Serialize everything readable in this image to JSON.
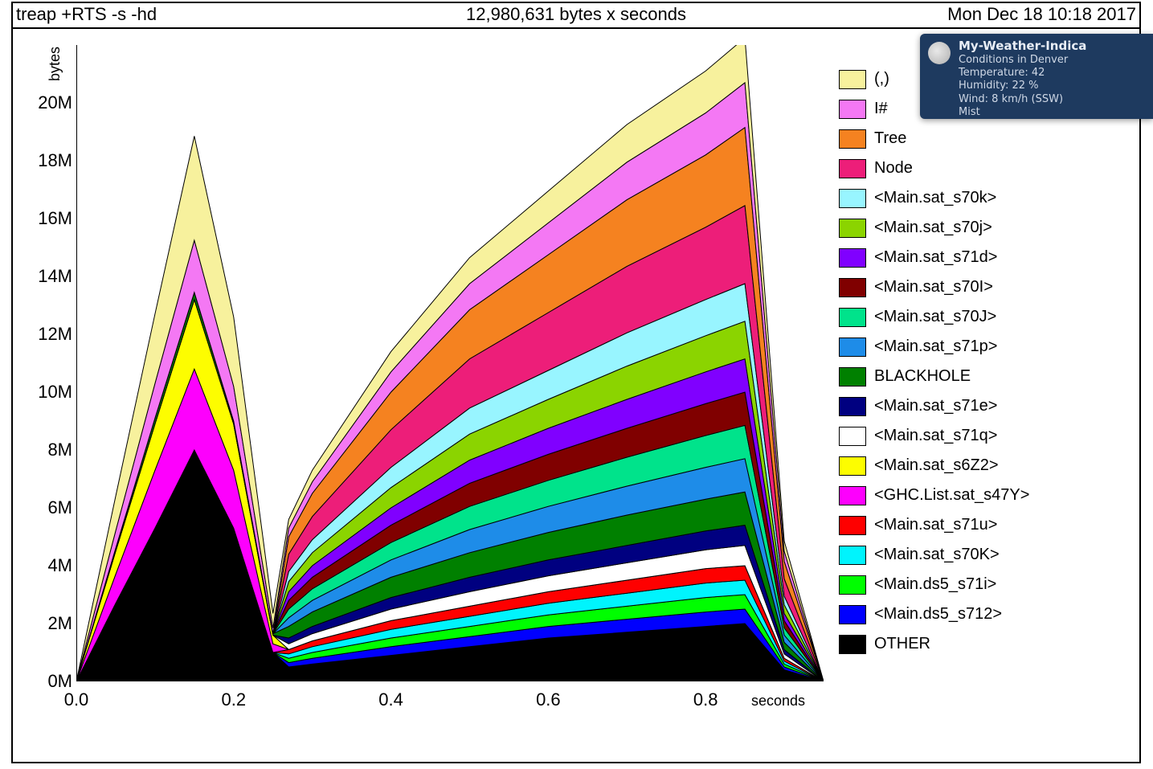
{
  "header": {
    "left": "treap +RTS -s -hd",
    "center": "12,980,631 bytes x seconds",
    "right": "Mon Dec 18 10:18 2017"
  },
  "chart": {
    "type": "area-stacked",
    "xlabel": "seconds",
    "ylabel": "bytes",
    "background_color": "#ffffff",
    "border_color": "#000000",
    "xlim": [
      0.0,
      0.95
    ],
    "ylim": [
      0,
      22
    ],
    "label_fontsize": 18,
    "tick_fontsize": 22,
    "x_ticks": [
      {
        "value": 0.0,
        "label": "0.0"
      },
      {
        "value": 0.2,
        "label": "0.2"
      },
      {
        "value": 0.4,
        "label": "0.4"
      },
      {
        "value": 0.6,
        "label": "0.6"
      },
      {
        "value": 0.8,
        "label": "0.8"
      }
    ],
    "y_ticks": [
      {
        "value": 0,
        "label": "0M"
      },
      {
        "value": 2,
        "label": "2M"
      },
      {
        "value": 4,
        "label": "4M"
      },
      {
        "value": 6,
        "label": "6M"
      },
      {
        "value": 8,
        "label": "8M"
      },
      {
        "value": 10,
        "label": "10M"
      },
      {
        "value": 12,
        "label": "12M"
      },
      {
        "value": 14,
        "label": "14M"
      },
      {
        "value": 16,
        "label": "16M"
      },
      {
        "value": 18,
        "label": "18M"
      },
      {
        "value": 20,
        "label": "20M"
      }
    ],
    "x_samples": [
      0.0,
      0.05,
      0.1,
      0.15,
      0.2,
      0.25,
      0.27,
      0.3,
      0.4,
      0.5,
      0.6,
      0.7,
      0.8,
      0.85,
      0.9,
      0.95
    ],
    "series_bottom_to_top": [
      {
        "name": "OTHER",
        "color": "#000000",
        "values": [
          0.0,
          2.7,
          5.3,
          8.0,
          5.3,
          1.0,
          0.5,
          0.6,
          0.9,
          1.2,
          1.5,
          1.7,
          1.9,
          2.0,
          0.4,
          0.0
        ]
      },
      {
        "name": "<Main.ds5_s712>",
        "color": "#0000fe",
        "values": [
          0.0,
          0.0,
          0.0,
          0.0,
          0.0,
          0.0,
          0.15,
          0.2,
          0.3,
          0.35,
          0.4,
          0.45,
          0.5,
          0.5,
          0.1,
          0.0
        ]
      },
      {
        "name": "<Main.ds5_s71i>",
        "color": "#00fe00",
        "values": [
          0.0,
          0.0,
          0.0,
          0.0,
          0.0,
          0.0,
          0.15,
          0.2,
          0.3,
          0.35,
          0.4,
          0.45,
          0.5,
          0.5,
          0.1,
          0.0
        ]
      },
      {
        "name": "<Main.sat_s70K>",
        "color": "#00f4fd",
        "values": [
          0.0,
          0.0,
          0.0,
          0.0,
          0.0,
          0.0,
          0.15,
          0.2,
          0.3,
          0.35,
          0.4,
          0.45,
          0.5,
          0.5,
          0.1,
          0.0
        ]
      },
      {
        "name": "<Main.sat_s71u>",
        "color": "#fe0000",
        "values": [
          0.0,
          0.0,
          0.0,
          0.0,
          0.0,
          0.0,
          0.15,
          0.2,
          0.3,
          0.35,
          0.4,
          0.45,
          0.5,
          0.5,
          0.1,
          0.0
        ]
      },
      {
        "name": "<GHC.List.sat_s47Y>",
        "color": "#fd00fd",
        "values": [
          0.0,
          1.0,
          2.0,
          2.8,
          2.0,
          0.3,
          0.0,
          0.0,
          0.0,
          0.0,
          0.0,
          0.0,
          0.0,
          0.0,
          0.0,
          0.0
        ]
      },
      {
        "name": "<Main.sat_s6Z2>",
        "color": "#fdfd00",
        "values": [
          0.0,
          0.8,
          1.6,
          2.4,
          1.6,
          0.3,
          0.0,
          0.0,
          0.0,
          0.0,
          0.0,
          0.0,
          0.0,
          0.0,
          0.0,
          0.0
        ]
      },
      {
        "name": "<Main.sat_s71q>",
        "color": "#ffffff",
        "values": [
          0.0,
          0.0,
          0.0,
          0.0,
          0.0,
          0.0,
          0.2,
          0.25,
          0.4,
          0.5,
          0.55,
          0.6,
          0.65,
          0.7,
          0.15,
          0.0
        ]
      },
      {
        "name": "<Main.sat_s71e>",
        "color": "#000080",
        "values": [
          0.0,
          0.0,
          0.0,
          0.0,
          0.0,
          0.0,
          0.2,
          0.25,
          0.4,
          0.5,
          0.55,
          0.6,
          0.65,
          0.7,
          0.15,
          0.0
        ]
      },
      {
        "name": "BLACKHOLE",
        "color": "#008000",
        "values": [
          0.0,
          0.1,
          0.2,
          0.25,
          0.1,
          0.05,
          0.4,
          0.5,
          0.7,
          0.85,
          0.95,
          1.05,
          1.1,
          1.15,
          0.25,
          0.0
        ]
      },
      {
        "name": "<Main.sat_s71p>",
        "color": "#1e8ce8",
        "values": [
          0.0,
          0.0,
          0.0,
          0.0,
          0.0,
          0.0,
          0.3,
          0.4,
          0.6,
          0.8,
          0.9,
          1.0,
          1.1,
          1.15,
          0.25,
          0.0
        ]
      },
      {
        "name": "<Main.sat_s70J>",
        "color": "#00e38b",
        "values": [
          0.0,
          0.0,
          0.0,
          0.0,
          0.0,
          0.0,
          0.3,
          0.4,
          0.6,
          0.8,
          0.9,
          1.0,
          1.1,
          1.15,
          0.25,
          0.0
        ]
      },
      {
        "name": "<Main.sat_s70I>",
        "color": "#800000",
        "values": [
          0.0,
          0.0,
          0.0,
          0.0,
          0.0,
          0.0,
          0.3,
          0.4,
          0.6,
          0.8,
          0.9,
          1.0,
          1.1,
          1.15,
          0.25,
          0.0
        ]
      },
      {
        "name": "<Main.sat_s71d>",
        "color": "#8000ff",
        "values": [
          0.0,
          0.0,
          0.0,
          0.0,
          0.0,
          0.0,
          0.3,
          0.4,
          0.6,
          0.8,
          0.9,
          1.0,
          1.1,
          1.15,
          0.25,
          0.0
        ]
      },
      {
        "name": "<Main.sat_s70j>",
        "color": "#8bd400",
        "values": [
          0.0,
          0.0,
          0.0,
          0.0,
          0.0,
          0.0,
          0.35,
          0.45,
          0.7,
          0.9,
          1.0,
          1.15,
          1.25,
          1.3,
          0.3,
          0.0
        ]
      },
      {
        "name": "<Main.sat_s70k>",
        "color": "#98f5ff",
        "values": [
          0.0,
          0.0,
          0.0,
          0.0,
          0.0,
          0.0,
          0.35,
          0.45,
          0.7,
          0.9,
          1.0,
          1.15,
          1.25,
          1.3,
          0.3,
          0.0
        ]
      },
      {
        "name": "Node",
        "color": "#ed1e79",
        "values": [
          0.0,
          0.0,
          0.0,
          0.0,
          0.0,
          0.0,
          0.6,
          0.8,
          1.3,
          1.7,
          2.0,
          2.3,
          2.5,
          2.7,
          0.6,
          0.0
        ]
      },
      {
        "name": "Tree",
        "color": "#f58220",
        "values": [
          0.0,
          0.0,
          0.0,
          0.0,
          0.0,
          0.0,
          0.6,
          0.8,
          1.3,
          1.7,
          2.0,
          2.3,
          2.5,
          2.7,
          0.6,
          0.0
        ]
      },
      {
        "name": "I#",
        "color": "#f478f4",
        "values": [
          0.0,
          0.6,
          1.2,
          1.8,
          1.2,
          0.2,
          0.3,
          0.4,
          0.7,
          0.9,
          1.1,
          1.3,
          1.45,
          1.55,
          0.35,
          0.0
        ]
      },
      {
        "name": "(,)",
        "color": "#f7f19d",
        "values": [
          0.0,
          1.2,
          2.4,
          3.6,
          2.4,
          0.5,
          0.3,
          0.4,
          0.7,
          0.9,
          1.1,
          1.3,
          1.45,
          1.55,
          0.35,
          0.0
        ]
      }
    ]
  },
  "legend_top_to_bottom": [
    "(,)",
    "I#",
    "Tree",
    "Node",
    "<Main.sat_s70k>",
    "<Main.sat_s70j>",
    "<Main.sat_s71d>",
    "<Main.sat_s70I>",
    "<Main.sat_s70J>",
    "<Main.sat_s71p>",
    "BLACKHOLE",
    "<Main.sat_s71e>",
    "<Main.sat_s71q>",
    "<Main.sat_s6Z2>",
    "<GHC.List.sat_s47Y>",
    "<Main.sat_s71u>",
    "<Main.sat_s70K>",
    "<Main.ds5_s71i>",
    "<Main.ds5_s712>",
    "OTHER"
  ],
  "notification": {
    "title": "My-Weather-Indica",
    "lines": [
      "Conditions in Denver",
      "Temperature: 42",
      "Humidity: 22 %",
      "Wind: 8 km/h (SSW)",
      "Mist"
    ],
    "background": "#1e3a5f",
    "text_color": "#cfd8e6"
  }
}
